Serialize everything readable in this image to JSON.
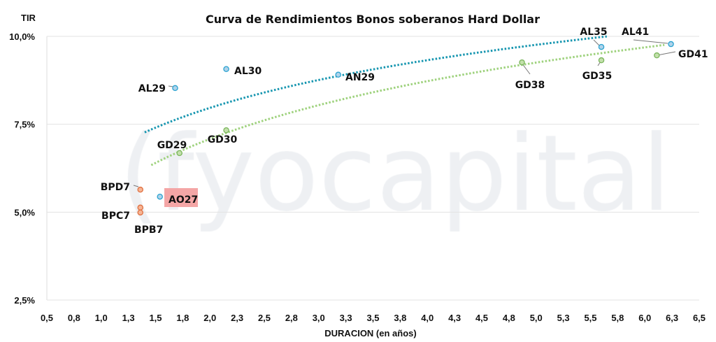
{
  "chart_data": {
    "type": "scatter",
    "title": "Curva de Rendimientos Bonos soberanos Hard Dollar",
    "xlabel": "DURACION (en años)",
    "ylabel": "TIR",
    "xlim": [
      0.5,
      6.5
    ],
    "ylim": [
      2.5,
      10.0
    ],
    "x_ticks": [
      "0,5",
      "0,8",
      "1,0",
      "1,3",
      "1,5",
      "1,8",
      "2,0",
      "2,3",
      "2,5",
      "2,8",
      "3,0",
      "3,3",
      "3,5",
      "3,8",
      "4,0",
      "4,3",
      "4,5",
      "4,8",
      "5,0",
      "5,3",
      "5,5",
      "5,8",
      "6,0",
      "6,3",
      "6,5"
    ],
    "y_ticks": [
      "2,5%",
      "5,0%",
      "7,5%",
      "10,0%"
    ],
    "grid": "horizontal",
    "watermark": "fyocapital",
    "colors": {
      "AL": "#2aa3d1",
      "GD": "#7ab55c",
      "BP": "#e07040",
      "trend_AL": "#1796b0",
      "trend_GD": "#9fd27e",
      "highlight": "#f4a6a6"
    },
    "series": [
      {
        "name": "AL",
        "points": [
          {
            "label": "AL29",
            "x": 1.68,
            "y": 8.53
          },
          {
            "label": "AL30",
            "x": 2.15,
            "y": 9.07
          },
          {
            "label": "AN29",
            "x": 3.18,
            "y": 8.91
          },
          {
            "label": "AL35",
            "x": 5.6,
            "y": 9.7
          },
          {
            "label": "AL41",
            "x": 6.24,
            "y": 9.78
          },
          {
            "label": "AO27",
            "x": 1.54,
            "y": 5.44,
            "highlight": true
          }
        ],
        "trend": {
          "type": "log",
          "a": 6.61,
          "b": 1.957,
          "x_range": [
            1.4,
            5.65
          ]
        }
      },
      {
        "name": "GD",
        "points": [
          {
            "label": "GD29",
            "x": 1.72,
            "y": 6.68
          },
          {
            "label": "GD30",
            "x": 2.15,
            "y": 7.33
          },
          {
            "label": "GD38",
            "x": 4.87,
            "y": 9.26
          },
          {
            "label": "GD35",
            "x": 5.6,
            "y": 9.32
          },
          {
            "label": "GD41",
            "x": 6.11,
            "y": 9.46
          }
        ],
        "trend": {
          "type": "log",
          "a": 5.44,
          "b": 2.37,
          "x_range": [
            1.46,
            6.18
          ]
        }
      },
      {
        "name": "BP",
        "points": [
          {
            "label": "BPD7",
            "x": 1.36,
            "y": 5.64
          },
          {
            "label": "BPC7",
            "x": 1.36,
            "y": 5.13
          },
          {
            "label": "BPB7",
            "x": 1.36,
            "y": 4.99
          }
        ]
      }
    ]
  }
}
